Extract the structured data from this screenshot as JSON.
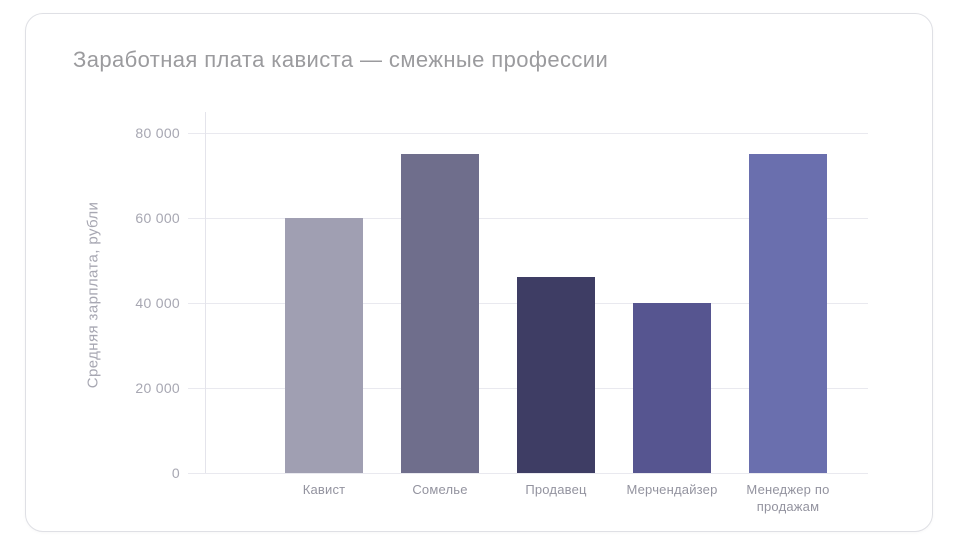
{
  "card": {
    "title": "Заработная плата кависта — смежные профессии"
  },
  "chart_data": {
    "type": "bar",
    "title": "Заработная плата кависта — смежные профессии",
    "xlabel": "",
    "ylabel": "Средняя зарплата, рубли",
    "categories": [
      "Кавист",
      "Сомелье",
      "Продавец",
      "Мерчендайзер",
      "Менеджер по продажам"
    ],
    "values": [
      60000,
      75000,
      46000,
      40000,
      75000
    ],
    "bar_colors": [
      "#a09fb2",
      "#6f6e8c",
      "#3e3d64",
      "#565590",
      "#6a6fae"
    ],
    "ylim": [
      0,
      85000
    ],
    "yticks": [
      0,
      20000,
      40000,
      60000,
      80000
    ],
    "ytick_labels": [
      "0",
      "20 000",
      "40 000",
      "60 000",
      "80 000"
    ],
    "grid": true,
    "legend": false
  },
  "colors": {
    "grid": "#e9e9ef",
    "axis": "#e4e4eb",
    "title_text": "#9b9b9e",
    "tick_text": "#a7a7b2",
    "category_text": "#93939f",
    "card_border": "#dfe0e5",
    "card_bg": "#ffffff"
  }
}
